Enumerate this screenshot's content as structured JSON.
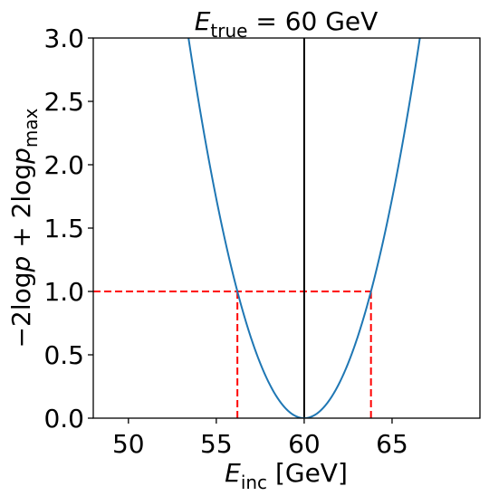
{
  "chart_data": {
    "type": "line",
    "title": {
      "symbol": "E",
      "subscript": "true",
      "rest": " = 60 GeV"
    },
    "xlabel": {
      "symbol": "E",
      "subscript": "inc",
      "rest": " [GeV]"
    },
    "ylabel": {
      "prefix": "−2log",
      "p1": "p",
      "mid": " + 2log",
      "p2": "p",
      "subscript": "max"
    },
    "xlim": [
      48,
      70
    ],
    "ylim": [
      0,
      3
    ],
    "x_ticks": [
      50,
      55,
      60,
      65
    ],
    "x_tick_labels": [
      "50",
      "55",
      "60",
      "65"
    ],
    "y_ticks": [
      0,
      0.5,
      1.0,
      1.5,
      2.0,
      2.5,
      3.0
    ],
    "y_tick_labels": [
      "0.0",
      "0.5",
      "1.0",
      "1.5",
      "2.0",
      "2.5",
      "3.0"
    ],
    "grid": false,
    "series": [
      {
        "function": "((x - 60) / 3.8)^2",
        "x_range": [
          53.4,
          66.6
        ],
        "color": "#1f77b4"
      }
    ],
    "vertical_line": {
      "x": 60,
      "color": "#000000"
    },
    "confidence_interval": {
      "level": 1.0,
      "x_low": 56.2,
      "x_high": 63.8,
      "color": "#ff0000"
    }
  }
}
